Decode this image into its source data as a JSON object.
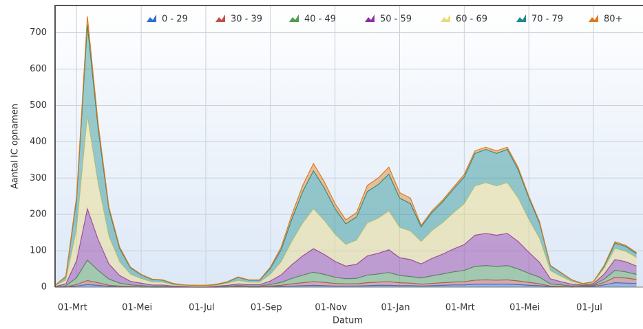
{
  "chart_data": {
    "type": "stacked_area",
    "x_label": "Datum",
    "y_label": "Aantal IC opnamen",
    "categories": [
      null,
      null,
      "01-Mrt",
      null,
      null,
      null,
      null,
      null,
      "01-Mei",
      null,
      null,
      null,
      null,
      null,
      "01-Jul",
      null,
      null,
      null,
      null,
      null,
      "01-Sep",
      null,
      null,
      null,
      null,
      null,
      "01-Nov",
      null,
      null,
      null,
      null,
      null,
      "01-Jan",
      null,
      null,
      null,
      null,
      null,
      "01-Mrt",
      null,
      null,
      null,
      null,
      null,
      "01-Mei",
      null,
      null,
      null,
      null,
      null,
      "01-Jul",
      null,
      null,
      null,
      null
    ],
    "series": [
      {
        "name": "0 - 29",
        "color": "#2f6fd0",
        "values": [
          0,
          0,
          3,
          7,
          5,
          2,
          1,
          1,
          0,
          0,
          0,
          0,
          0,
          0,
          0,
          0,
          0,
          1,
          0,
          0,
          1,
          2,
          3,
          4,
          5,
          4,
          3,
          3,
          3,
          4,
          5,
          5,
          4,
          4,
          3,
          4,
          5,
          6,
          6,
          8,
          8,
          8,
          8,
          7,
          5,
          4,
          1,
          1,
          0,
          1,
          2,
          6,
          12,
          11,
          10
        ]
      },
      {
        "name": "30 - 39",
        "color": "#c0504d",
        "values": [
          0,
          1,
          4,
          11,
          7,
          3,
          2,
          1,
          1,
          0,
          0,
          0,
          0,
          0,
          0,
          0,
          1,
          1,
          1,
          1,
          2,
          3,
          6,
          8,
          10,
          9,
          7,
          6,
          6,
          8,
          9,
          10,
          8,
          7,
          5,
          6,
          7,
          8,
          9,
          11,
          12,
          11,
          12,
          10,
          8,
          5,
          2,
          1,
          1,
          1,
          2,
          7,
          15,
          14,
          11
        ]
      },
      {
        "name": "40 - 49",
        "color": "#4e9a4e",
        "values": [
          1,
          2,
          19,
          56,
          34,
          17,
          8,
          4,
          3,
          2,
          2,
          1,
          1,
          0,
          0,
          1,
          1,
          2,
          2,
          2,
          4,
          8,
          15,
          21,
          26,
          22,
          17,
          14,
          15,
          21,
          22,
          25,
          20,
          18,
          17,
          21,
          24,
          28,
          31,
          38,
          39,
          38,
          39,
          33,
          25,
          18,
          6,
          4,
          2,
          2,
          2,
          9,
          19,
          17,
          14
        ]
      },
      {
        "name": "50 - 59",
        "color": "#8e2f9e",
        "values": [
          1,
          6,
          47,
          142,
          85,
          42,
          21,
          10,
          7,
          4,
          4,
          2,
          1,
          1,
          1,
          2,
          3,
          5,
          4,
          4,
          10,
          21,
          38,
          53,
          65,
          55,
          44,
          35,
          39,
          53,
          57,
          63,
          49,
          47,
          39,
          48,
          55,
          63,
          71,
          86,
          89,
          86,
          89,
          76,
          58,
          41,
          14,
          9,
          5,
          2,
          4,
          14,
          30,
          28,
          23
        ]
      },
      {
        "name": "60 - 69",
        "color": "#ecd97a",
        "values": [
          2,
          10,
          85,
          253,
          153,
          75,
          37,
          19,
          12,
          8,
          7,
          3,
          2,
          2,
          2,
          2,
          5,
          9,
          6,
          6,
          18,
          35,
          64,
          90,
          109,
          93,
          74,
          59,
          66,
          90,
          96,
          106,
          83,
          78,
          61,
          76,
          86,
          99,
          112,
          135,
          139,
          135,
          139,
          119,
          90,
          65,
          22,
          14,
          7,
          2,
          3,
          15,
          30,
          28,
          23
        ]
      },
      {
        "name": "70 - 79",
        "color": "#1a8a8a",
        "values": [
          1,
          10,
          85,
          253,
          153,
          75,
          37,
          18,
          11,
          7,
          6,
          3,
          2,
          2,
          2,
          2,
          4,
          9,
          6,
          6,
          17,
          34,
          62,
          87,
          105,
          90,
          71,
          57,
          64,
          87,
          93,
          102,
          81,
          76,
          41,
          50,
          58,
          66,
          74,
          90,
          92,
          90,
          92,
          79,
          60,
          43,
          14,
          10,
          5,
          1,
          2,
          7,
          15,
          14,
          11
        ]
      },
      {
        "name": "80+",
        "color": "#e07a1a",
        "values": [
          0,
          1,
          7,
          23,
          13,
          6,
          4,
          2,
          1,
          1,
          1,
          1,
          0,
          0,
          0,
          1,
          1,
          1,
          1,
          1,
          3,
          7,
          12,
          17,
          20,
          17,
          14,
          11,
          12,
          17,
          18,
          19,
          15,
          15,
          4,
          5,
          5,
          5,
          7,
          7,
          6,
          7,
          6,
          6,
          4,
          4,
          1,
          1,
          0,
          1,
          0,
          2,
          4,
          3,
          3
        ]
      }
    ],
    "ylim": [
      0,
      775
    ],
    "yticks": [
      0,
      100,
      200,
      300,
      400,
      500,
      600,
      700
    ],
    "grid": true,
    "legend": "top"
  }
}
